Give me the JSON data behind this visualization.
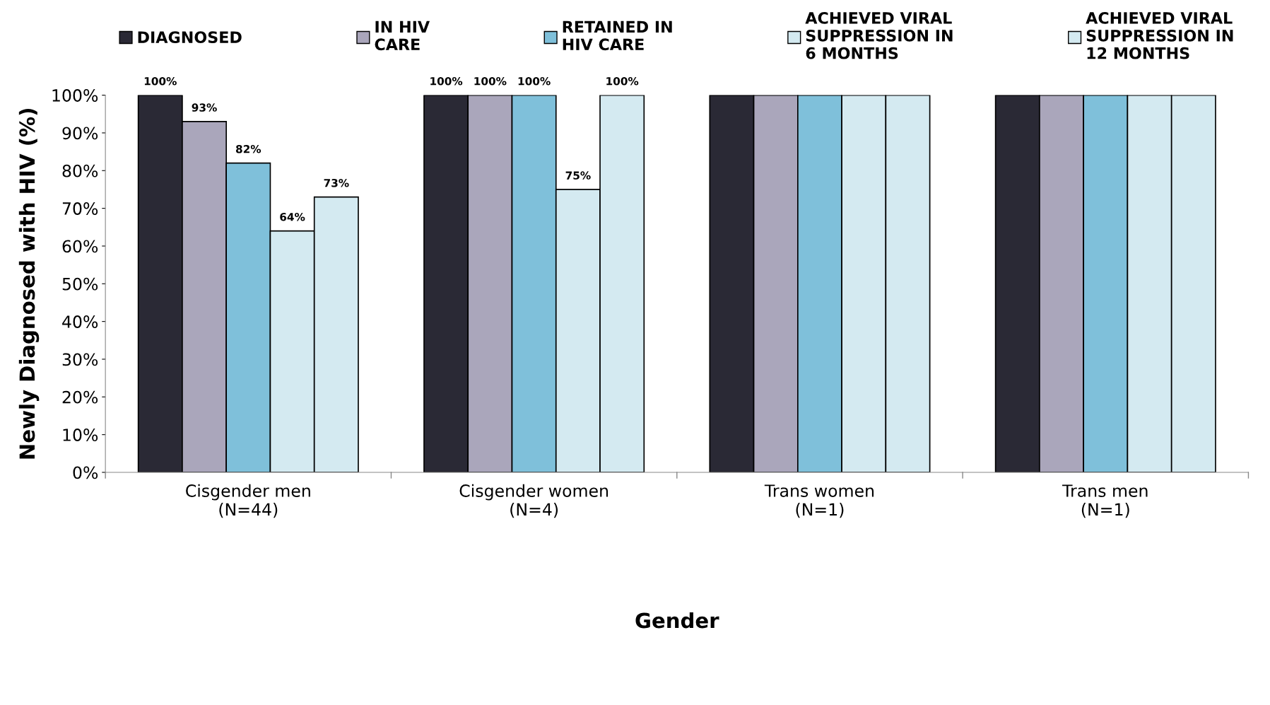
{
  "chart_data": {
    "type": "bar",
    "xlabel": "Gender",
    "ylabel": "Newly Diagnosed with HIV (%)",
    "categories": [
      "Cisgender men\n(N=44)",
      "Cisgender women\n(N=4)",
      "Trans women\n(N=1)",
      "Trans men\n(N=1)"
    ],
    "series": [
      {
        "name": "DIAGNOSED",
        "color": "#2a2935",
        "values": [
          100,
          100,
          100,
          100
        ],
        "value_labels": [
          "100%",
          "100%",
          null,
          null
        ]
      },
      {
        "name": "IN HIV\nCARE",
        "color": "#aaa6bb",
        "values": [
          93,
          100,
          100,
          100
        ],
        "value_labels": [
          "93%",
          "100%",
          null,
          null
        ]
      },
      {
        "name": "RETAINED IN\nHIV CARE",
        "color": "#7fc0da",
        "values": [
          82,
          100,
          100,
          100
        ],
        "value_labels": [
          "82%",
          "100%",
          null,
          null
        ]
      },
      {
        "name": "ACHIEVED VIRAL\nSUPPRESSION IN\n6 MONTHS",
        "color": "#d4eaf1",
        "values": [
          64,
          75,
          100,
          100
        ],
        "value_labels": [
          "64%",
          "75%",
          null,
          null
        ]
      },
      {
        "name": "ACHIEVED VIRAL\nSUPPRESSION IN\n12 MONTHS",
        "color": "#d4eaf1",
        "values": [
          73,
          100,
          100,
          100
        ],
        "value_labels": [
          "73%",
          "100%",
          null,
          null
        ]
      }
    ],
    "ylim": [
      0,
      100
    ],
    "yticks": [
      {
        "value": 0,
        "label": "0%"
      },
      {
        "value": 10,
        "label": "10%"
      },
      {
        "value": 20,
        "label": "20%"
      },
      {
        "value": 30,
        "label": "30%"
      },
      {
        "value": 40,
        "label": "40%"
      },
      {
        "value": 50,
        "label": "50%"
      },
      {
        "value": 60,
        "label": "60%"
      },
      {
        "value": 70,
        "label": "70%"
      },
      {
        "value": 80,
        "label": "80%"
      },
      {
        "value": 90,
        "label": "90%"
      },
      {
        "value": 100,
        "label": "100%"
      }
    ],
    "grid": false,
    "legend": "top"
  }
}
